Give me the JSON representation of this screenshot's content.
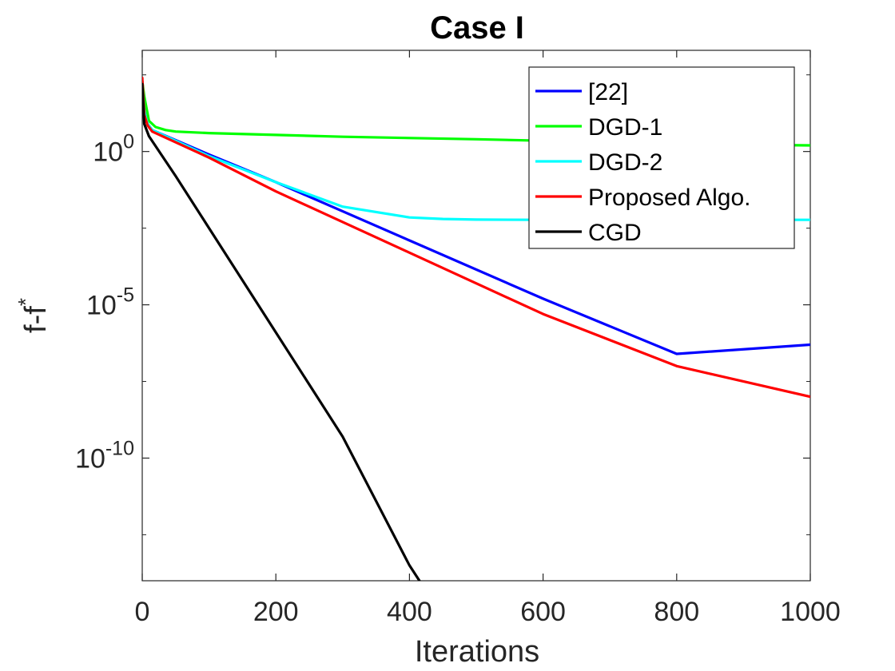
{
  "chart_data": {
    "type": "line",
    "title": "Case I",
    "xlabel": "Iterations",
    "ylabel": "f-f",
    "ylabel_superscript": "*",
    "xlim": [
      0,
      1000
    ],
    "ylim_log10": [
      -14,
      3.3
    ],
    "x_ticks": [
      {
        "value": 0,
        "label": "0"
      },
      {
        "value": 200,
        "label": "200"
      },
      {
        "value": 400,
        "label": "400"
      },
      {
        "value": 600,
        "label": "600"
      },
      {
        "value": 800,
        "label": "800"
      },
      {
        "value": 1000,
        "label": "1000"
      }
    ],
    "y_ticks": [
      {
        "value": 0,
        "base": "10",
        "exp": "0"
      },
      {
        "value": -5,
        "base": "10",
        "exp": "-5"
      },
      {
        "value": -10,
        "base": "10",
        "exp": "-10"
      }
    ],
    "y_minor_ticks": [
      2.5,
      -2.5,
      -7.5,
      -12.5
    ],
    "legend_position": "top-right",
    "y_scale": "log",
    "series": [
      {
        "name": "[22]",
        "color": "#0000ff",
        "x": [
          0,
          3,
          8,
          15,
          100,
          200,
          400,
          600,
          800,
          1000
        ],
        "log10y": [
          2.3,
          1.3,
          0.9,
          0.7,
          -0.1,
          -1.0,
          -2.9,
          -4.8,
          -6.6,
          -6.3
        ]
      },
      {
        "name": "DGD-1",
        "color": "#00ff00",
        "x": [
          0,
          3,
          10,
          20,
          35,
          50,
          100,
          300,
          500,
          700,
          900,
          1000
        ],
        "log10y": [
          2.3,
          1.8,
          1.0,
          0.8,
          0.7,
          0.65,
          0.6,
          0.48,
          0.4,
          0.3,
          0.22,
          0.2
        ]
      },
      {
        "name": "DGD-2",
        "color": "#00ffff",
        "x": [
          0,
          3,
          8,
          15,
          100,
          200,
          300,
          400,
          450,
          500,
          600,
          800,
          1000
        ],
        "log10y": [
          2.3,
          1.3,
          0.9,
          0.7,
          -0.15,
          -1.0,
          -1.8,
          -2.15,
          -2.2,
          -2.22,
          -2.23,
          -2.23,
          -2.23
        ]
      },
      {
        "name": "Proposed Algo.",
        "color": "#ff0000",
        "x": [
          0,
          3,
          8,
          15,
          100,
          200,
          400,
          600,
          800,
          1000
        ],
        "log10y": [
          2.4,
          1.2,
          0.85,
          0.65,
          -0.2,
          -1.3,
          -3.3,
          -5.3,
          -7.0,
          -8.0
        ]
      },
      {
        "name": "CGD",
        "color": "#000000",
        "x": [
          0,
          3,
          10,
          50,
          100,
          200,
          300,
          400,
          415
        ],
        "log10y": [
          2.2,
          0.9,
          0.5,
          -0.8,
          -2.5,
          -5.9,
          -9.3,
          -13.5,
          -14.0
        ]
      }
    ]
  }
}
